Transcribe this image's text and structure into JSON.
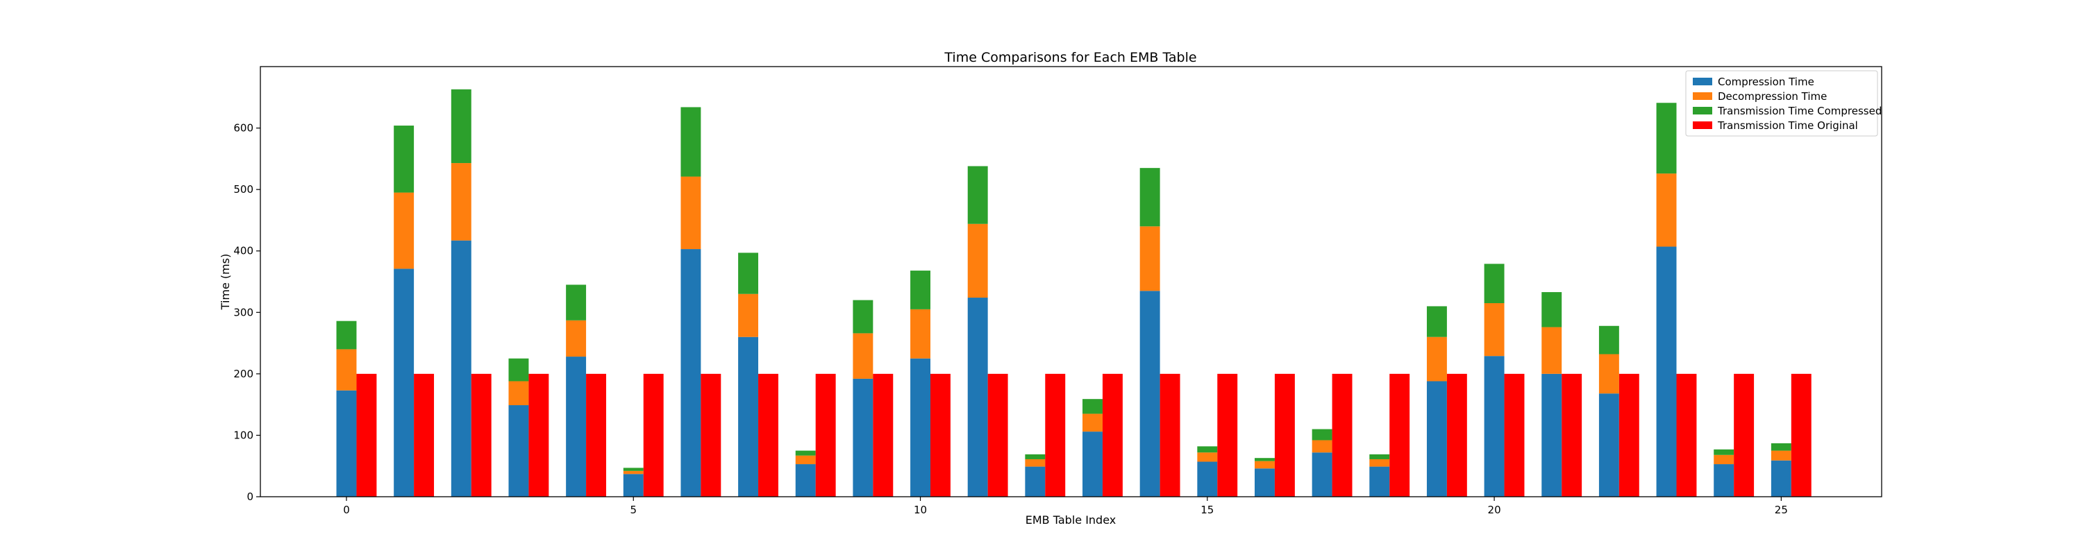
{
  "chart_data": {
    "type": "bar",
    "title": "Time Comparisons for Each EMB Table",
    "xlabel": "EMB Table Index",
    "ylabel": "Time (ms)",
    "ylim": [
      0,
      700
    ],
    "xlim": [
      -1.5,
      26.75
    ],
    "yticks": [
      0,
      100,
      200,
      300,
      400,
      500,
      600
    ],
    "xticks": [
      0,
      5,
      10,
      15,
      20,
      25
    ],
    "grid": false,
    "legend_position": "top-right",
    "x": [
      0,
      1,
      2,
      3,
      4,
      5,
      6,
      7,
      8,
      9,
      10,
      11,
      12,
      13,
      14,
      15,
      16,
      17,
      18,
      19,
      20,
      21,
      22,
      23,
      24,
      25
    ],
    "series": [
      {
        "name": "Compression Time",
        "color": "#1f77b4",
        "stack": "compressed",
        "values": [
          173,
          371,
          417,
          149,
          228,
          37,
          403,
          260,
          53,
          192,
          225,
          324,
          49,
          106,
          335,
          57,
          46,
          72,
          49,
          188,
          229,
          200,
          168,
          407,
          53,
          59
        ]
      },
      {
        "name": "Decompression Time",
        "color": "#ff7f0e",
        "stack": "compressed",
        "values": [
          67,
          124,
          126,
          39,
          59,
          5,
          118,
          70,
          14,
          74,
          80,
          120,
          12,
          29,
          105,
          15,
          12,
          20,
          12,
          72,
          86,
          76,
          64,
          119,
          15,
          16
        ]
      },
      {
        "name": "Transmission Time Compressed",
        "color": "#2ca02c",
        "stack": "compressed",
        "values": [
          46,
          109,
          120,
          37,
          58,
          5,
          113,
          67,
          8,
          54,
          63,
          94,
          8,
          24,
          95,
          10,
          5,
          18,
          8,
          50,
          64,
          57,
          46,
          115,
          9,
          12
        ]
      },
      {
        "name": "Transmission Time Original",
        "color": "#ff0000",
        "stack": "original",
        "values": [
          200,
          200,
          200,
          200,
          200,
          200,
          200,
          200,
          200,
          200,
          200,
          200,
          200,
          200,
          200,
          200,
          200,
          200,
          200,
          200,
          200,
          200,
          200,
          200,
          200,
          200
        ]
      }
    ]
  }
}
